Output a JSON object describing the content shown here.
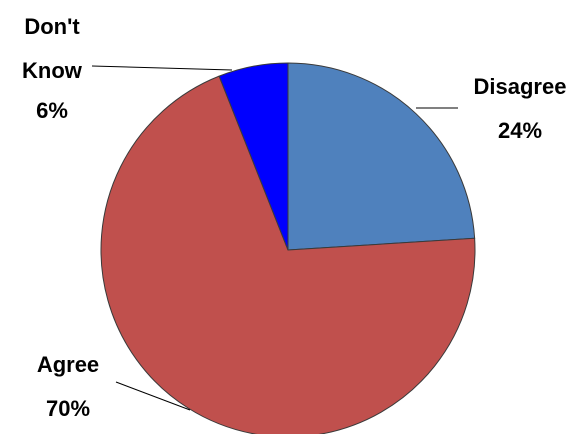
{
  "chart_data": {
    "type": "pie",
    "title": "",
    "start_angle_deg": 0,
    "direction": "clockwise",
    "slices": [
      {
        "label": "Disagree",
        "value": 24,
        "percent_label": "24%",
        "color": "#4f81bd"
      },
      {
        "label": "Agree",
        "value": 70,
        "percent_label": "70%",
        "color": "#c0504d"
      },
      {
        "label": "Don't Know",
        "value": 6,
        "percent_label": "6%",
        "color": "#0000ff"
      }
    ],
    "label_lines": {
      "Disagree": [
        "Disagree",
        "24%"
      ],
      "Agree": [
        "Agree",
        "70%"
      ],
      "Don't Know": [
        "Don't",
        "Know",
        "6%"
      ]
    }
  }
}
